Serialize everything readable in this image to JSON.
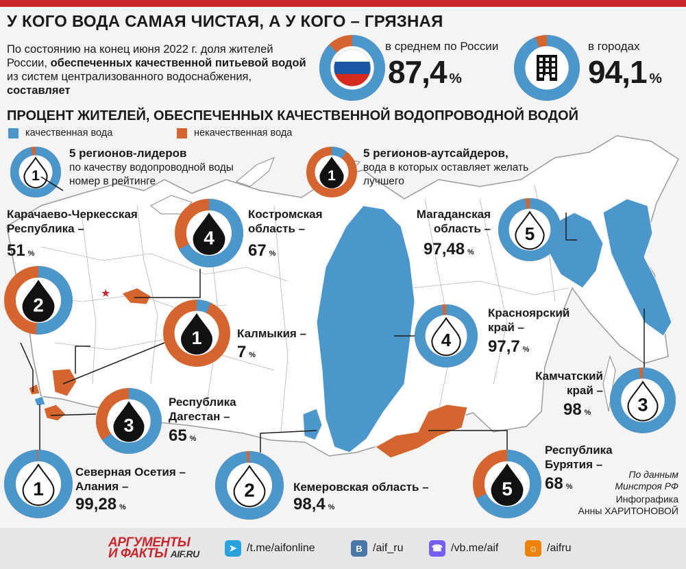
{
  "title": "У КОГО ВОДА САМАЯ ЧИСТАЯ, А У КОГО – ГРЯЗНАЯ",
  "intro": {
    "p1": "По состоянию на конец июня 2022 г. доля жителей России, ",
    "b1": "обеспеченных качественной питьевой водой",
    "p2": " из систем централизованного водоснабжения, ",
    "b2": "составляет"
  },
  "summary": {
    "russia": {
      "label": "в среднем по России",
      "value": "87,4",
      "unit": "%"
    },
    "cities": {
      "label": "в городах",
      "value": "94,1",
      "unit": "%"
    }
  },
  "section_title": "ПРОЦЕНТ ЖИТЕЛЕЙ, ОБЕСПЕЧЕННЫХ КАЧЕСТВЕННОЙ ВОДОПРОВОДНОЙ ВОДОЙ",
  "legend": {
    "good": "качественная вода",
    "bad": "некачественная вода"
  },
  "info": {
    "leaders_title": "5 регионов-лидеров",
    "leaders_sub": "по качеству водопроводной воды",
    "rank_note": "номер в рейтинге",
    "outsiders_title": "5 регионов-аутсайдеров,",
    "outsiders_sub1": "вода в которых оставляет желать",
    "outsiders_sub2": "лучшего"
  },
  "colors": {
    "good": "#4b97cc",
    "bad": "#d4652f",
    "star": "#c8262c"
  },
  "chart_data": {
    "type": "pie",
    "title": "ПРОЦЕНТ ЖИТЕЛЕЙ, ОБЕСПЕЧЕННЫХ КАЧЕСТВЕННОЙ ВОДОПРОВОДНОЙ ВОДОЙ",
    "series_labels": [
      "качественная вода",
      "некачественная вода"
    ],
    "summary": [
      {
        "name": "в среднем по России",
        "value": 87.4
      },
      {
        "name": "в городах",
        "value": 94.1
      }
    ],
    "leaders": [
      {
        "rank": 1,
        "name_lines": [
          "Северная Осетия –",
          "Алания –"
        ],
        "value": 99.28,
        "label": "99,28"
      },
      {
        "rank": 2,
        "name_lines": [
          "Кемеровская область –"
        ],
        "value": 98.4,
        "label": "98,4"
      },
      {
        "rank": 3,
        "name_lines": [
          "Камчатский",
          "край –"
        ],
        "value": 98,
        "label": "98"
      },
      {
        "rank": 4,
        "name_lines": [
          "Красноярский",
          "край –"
        ],
        "value": 97.7,
        "label": "97,7"
      },
      {
        "rank": 5,
        "name_lines": [
          "Магаданская",
          "область –"
        ],
        "value": 97.48,
        "label": "97,48"
      }
    ],
    "outsiders": [
      {
        "rank": 1,
        "name_lines": [
          "Калмыкия –"
        ],
        "value": 7,
        "label": "7"
      },
      {
        "rank": 2,
        "name_lines": [
          "Карачаево-Черкесская",
          "Республика –"
        ],
        "value": 51,
        "label": "51"
      },
      {
        "rank": 3,
        "name_lines": [
          "Республика",
          "Дагестан –"
        ],
        "value": 65,
        "label": "65"
      },
      {
        "rank": 4,
        "name_lines": [
          "Костромская",
          "область –"
        ],
        "value": 67,
        "label": "67"
      },
      {
        "rank": 5,
        "name_lines": [
          "Республика",
          "Бурятия –"
        ],
        "value": 68,
        "label": "68"
      }
    ]
  },
  "source": {
    "line1": "По данным",
    "line2": "Минстроя РФ"
  },
  "credit": {
    "line1": "Инфографика",
    "line2": "Анны ХАРИТОНОВОЙ"
  },
  "footer": {
    "logo_top": "АРГУМЕНТЫ",
    "logo_bottom": "И ФАКТЫ",
    "logo_domain": "AIF.RU",
    "links": [
      {
        "icon": "telegram-icon",
        "text": "/t.me/aifonline",
        "color": "#2aa3dd"
      },
      {
        "icon": "vk-icon",
        "text": "/aif_ru",
        "color": "#4a76a8"
      },
      {
        "icon": "viber-icon",
        "text": "/vb.me/aif",
        "color": "#7360f2"
      },
      {
        "icon": "ok-icon",
        "text": "/aifru",
        "color": "#ee8208"
      }
    ]
  }
}
